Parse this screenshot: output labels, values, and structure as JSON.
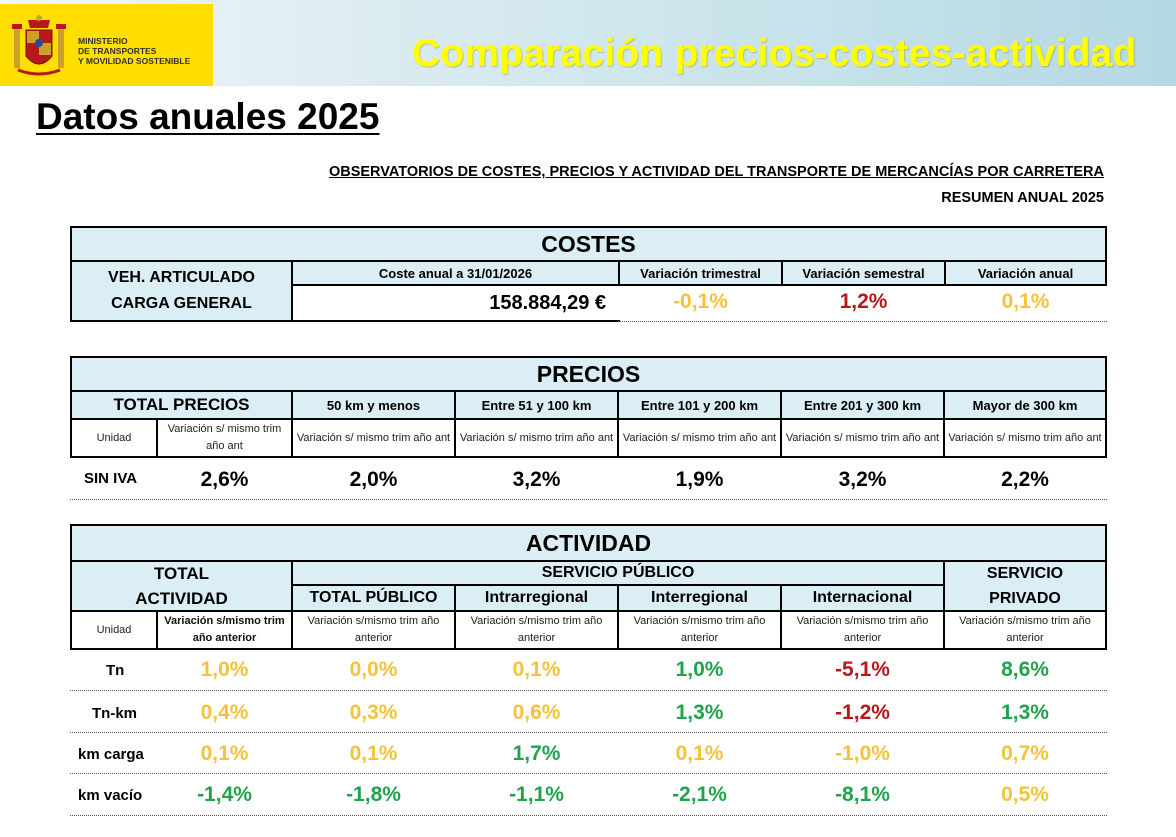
{
  "header": {
    "ministry_lines": [
      "MINISTERIO",
      "DE TRANSPORTES",
      "Y MOVILIDAD SOSTENIBLE"
    ],
    "title": "Comparación precios-costes-actividad"
  },
  "page_heading": "Datos anuales 2025",
  "observatory": {
    "title": "OBSERVATORIOS DE COSTES, PRECIOS Y ACTIVIDAD DEL TRANSPORTE DE MERCANCÍAS POR CARRETERA",
    "subtitle": "RESUMEN ANUAL 2025"
  },
  "costes": {
    "banner": "COSTES",
    "vehicle_line1": "VEH. ARTICULADO",
    "vehicle_line2": "CARGA GENERAL",
    "col_coste": "Coste anual a 31/01/2026",
    "col_trim": "Variación trimestral",
    "col_sem": "Variación semestral",
    "col_anual": "Variación anual",
    "value_coste": "158.884,29 €",
    "value_trim": "-0,1%",
    "value_sem": "1,2%",
    "value_anual": "0,1%"
  },
  "precios": {
    "banner": "PRECIOS",
    "total_label": "TOTAL PRECIOS",
    "columns": [
      "50 km y menos",
      "Entre 51 y 100 km",
      "Entre 101 y 200 km",
      "Entre 201 y 300 km",
      "Mayor de 300 km"
    ],
    "unidad": "Unidad",
    "sub_label": "Variación s/ mismo trim año ant",
    "row_label": "SIN IVA",
    "values": [
      "2,6%",
      "2,0%",
      "3,2%",
      "1,9%",
      "3,2%",
      "2,2%"
    ]
  },
  "actividad": {
    "banner": "ACTIVIDAD",
    "total_line1": "TOTAL",
    "total_line2": "ACTIVIDAD",
    "servicio_publico": "SERVICIO PÚBLICO",
    "servicio_privado_line1": "SERVICIO",
    "servicio_privado_line2": "PRIVADO",
    "columns": [
      "TOTAL PÚBLICO",
      "Intrarregional",
      "Interregional",
      "Internacional"
    ],
    "unidad": "Unidad",
    "sub_total": "Variación s/mismo trim año anterior",
    "sub_label": "Variación s/mismo trim año anterior",
    "rows": [
      {
        "label": "Tn",
        "values": [
          "1,0%",
          "0,0%",
          "0,1%",
          "1,0%",
          "-5,1%",
          "8,6%"
        ]
      },
      {
        "label": "Tn-km",
        "values": [
          "0,4%",
          "0,3%",
          "0,6%",
          "1,3%",
          "-1,2%",
          "1,3%"
        ]
      },
      {
        "label": "km carga",
        "values": [
          "0,1%",
          "0,1%",
          "1,7%",
          "0,1%",
          "-1,0%",
          "0,7%"
        ]
      },
      {
        "label": "km vacío",
        "values": [
          "-1,4%",
          "-1,8%",
          "-1,1%",
          "-2,1%",
          "-8,1%",
          "0,5%"
        ]
      }
    ]
  },
  "colors": {
    "yellow": "#f5c23a",
    "red": "#b8171c",
    "green": "#20a34a",
    "header_blue": "#dbeef5",
    "title_yellow": "#ffff00",
    "logo_yellow": "#ffde00"
  }
}
